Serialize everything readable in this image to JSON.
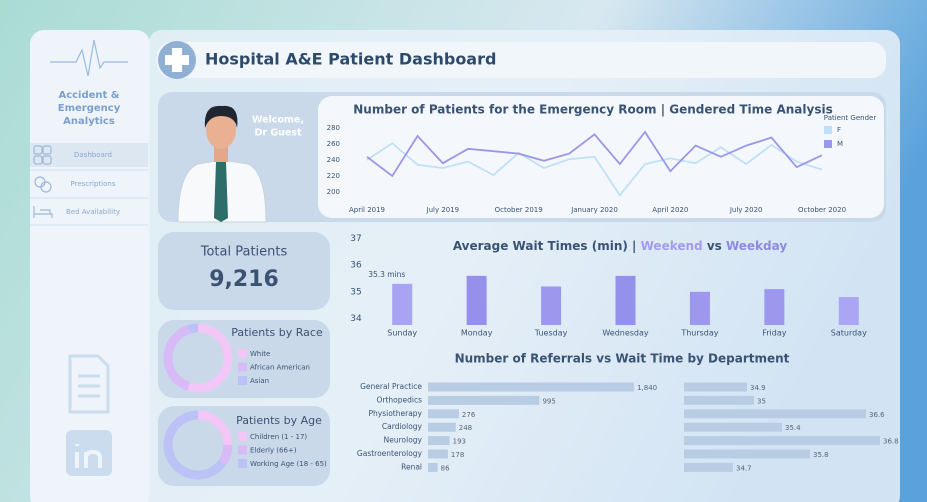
{
  "sidebar": {
    "title": [
      "Accident &",
      "Emergency",
      "Analytics"
    ],
    "menu": [
      "Dashboard",
      "Prescriptions",
      "Bed Availability"
    ]
  },
  "header": {
    "title": "Hospital A&E Patient Dashboard"
  },
  "welcome": [
    "Welcome,",
    "Dr Guest"
  ],
  "total": {
    "label": "Total Patients",
    "value": "9,216"
  },
  "chart_data": [
    {
      "type": "line",
      "title": "Number of Patients for the Emergency Room | Gendered Time Analysis",
      "categories": [
        "April 2019",
        null,
        null,
        "July 2019",
        null,
        null,
        "October 2019",
        null,
        null,
        "January 2020",
        null,
        null,
        "April 2020",
        null,
        null,
        "July 2020",
        null,
        null,
        "October 2020"
      ],
      "legend_title": "Patient Gender",
      "series": [
        {
          "name": "F",
          "color": "#bfe0f7",
          "values": [
            240,
            261,
            234,
            230,
            238,
            221,
            249,
            230,
            241,
            244,
            196,
            235,
            242,
            236,
            256,
            235,
            259,
            238,
            228
          ]
        },
        {
          "name": "M",
          "color": "#9a96e8",
          "values": [
            244,
            220,
            270,
            236,
            254,
            251,
            248,
            239,
            248,
            272,
            235,
            275,
            226,
            258,
            244,
            258,
            268,
            231,
            246
          ]
        }
      ],
      "ylim": [
        190,
        285
      ],
      "yticks": [
        200,
        220,
        240,
        260,
        280
      ],
      "grid": false
    },
    {
      "type": "bar",
      "title_parts": [
        "Average Wait Times (min) | ",
        "Weekend",
        " vs ",
        "Weekday"
      ],
      "title_colors": [
        "#3a5373",
        "#a39bf0",
        "#3a5373",
        "#8f8ae0"
      ],
      "categories": [
        "Sunday",
        "Monday",
        "Tuesday",
        "Wednesday",
        "Thursday",
        "Friday",
        "Saturday"
      ],
      "values": [
        35.3,
        35.6,
        35.2,
        35.6,
        35.0,
        35.1,
        34.8
      ],
      "value_labels": [
        "35.3 mins",
        null,
        null,
        null,
        null,
        null,
        null
      ],
      "colors": [
        "#a8a3f2",
        "#9590ec",
        "#9d98ee",
        "#9590ec",
        "#9d98ee",
        "#9d98ee",
        "#aaa6f3"
      ],
      "ylim": [
        33.75,
        37.1
      ],
      "yticks": [
        34,
        35,
        36,
        37
      ],
      "grid": false
    },
    {
      "type": "hbar",
      "title": "Number of Referrals vs Wait Time by Department",
      "categories": [
        "General Practice",
        "Orthopedics",
        "Physiotherapy",
        "Cardiology",
        "Neurology",
        "Gastroenterology",
        "Renal"
      ],
      "series": [
        {
          "color": "#b8cde4",
          "values": [
            1840,
            995,
            276,
            248,
            193,
            178,
            86
          ],
          "value_labels": [
            "1,840",
            "995",
            "276",
            "248",
            "193",
            "178",
            "86"
          ],
          "xlim": [
            0,
            2000
          ]
        },
        {
          "color": "#b8cde4",
          "values": [
            34.9,
            35.0,
            36.6,
            35.4,
            36.8,
            35.8,
            34.7
          ],
          "xlim": [
            34,
            37
          ]
        }
      ]
    },
    {
      "type": "pie",
      "title": "Patients by Race",
      "categories": [
        "White",
        "African American",
        "Asian"
      ],
      "values": [
        55,
        40,
        5
      ],
      "colors": [
        "#f2c6f6",
        "#d7baf6",
        "#bcc2f6"
      ]
    },
    {
      "type": "pie",
      "title": "Patients by Age",
      "categories": [
        "Children (1 - 17)",
        "Elderly (66+)",
        "Working Age (18 - 65)"
      ],
      "values": [
        25,
        10,
        65
      ],
      "colors": [
        "#f2c6f6",
        "#d7baf6",
        "#bcc2f6"
      ]
    }
  ]
}
